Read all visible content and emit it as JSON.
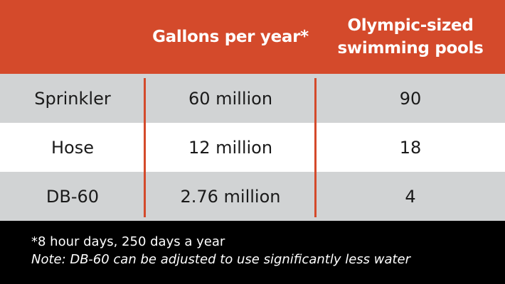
{
  "colors": {
    "header_bg": "#d44a2b",
    "row_shade": "#d1d3d4",
    "row_plain": "#ffffff",
    "footer_bg": "#000000",
    "divider": "#d44a2b"
  },
  "chart_data": {
    "type": "table",
    "columns": [
      "",
      "Gallons per year*",
      "Olympic-sized swimming pools"
    ],
    "rows": [
      {
        "label": "Sprinkler",
        "gallons": "60 million",
        "pools": "90"
      },
      {
        "label": "Hose",
        "gallons": "12 million",
        "pools": "18"
      },
      {
        "label": "DB-60",
        "gallons": "2.76 million",
        "pools": "4"
      }
    ],
    "footnotes": [
      "*8 hour days, 250 days a year",
      "Note: DB-60 can be adjusted to use significantly less water"
    ]
  }
}
